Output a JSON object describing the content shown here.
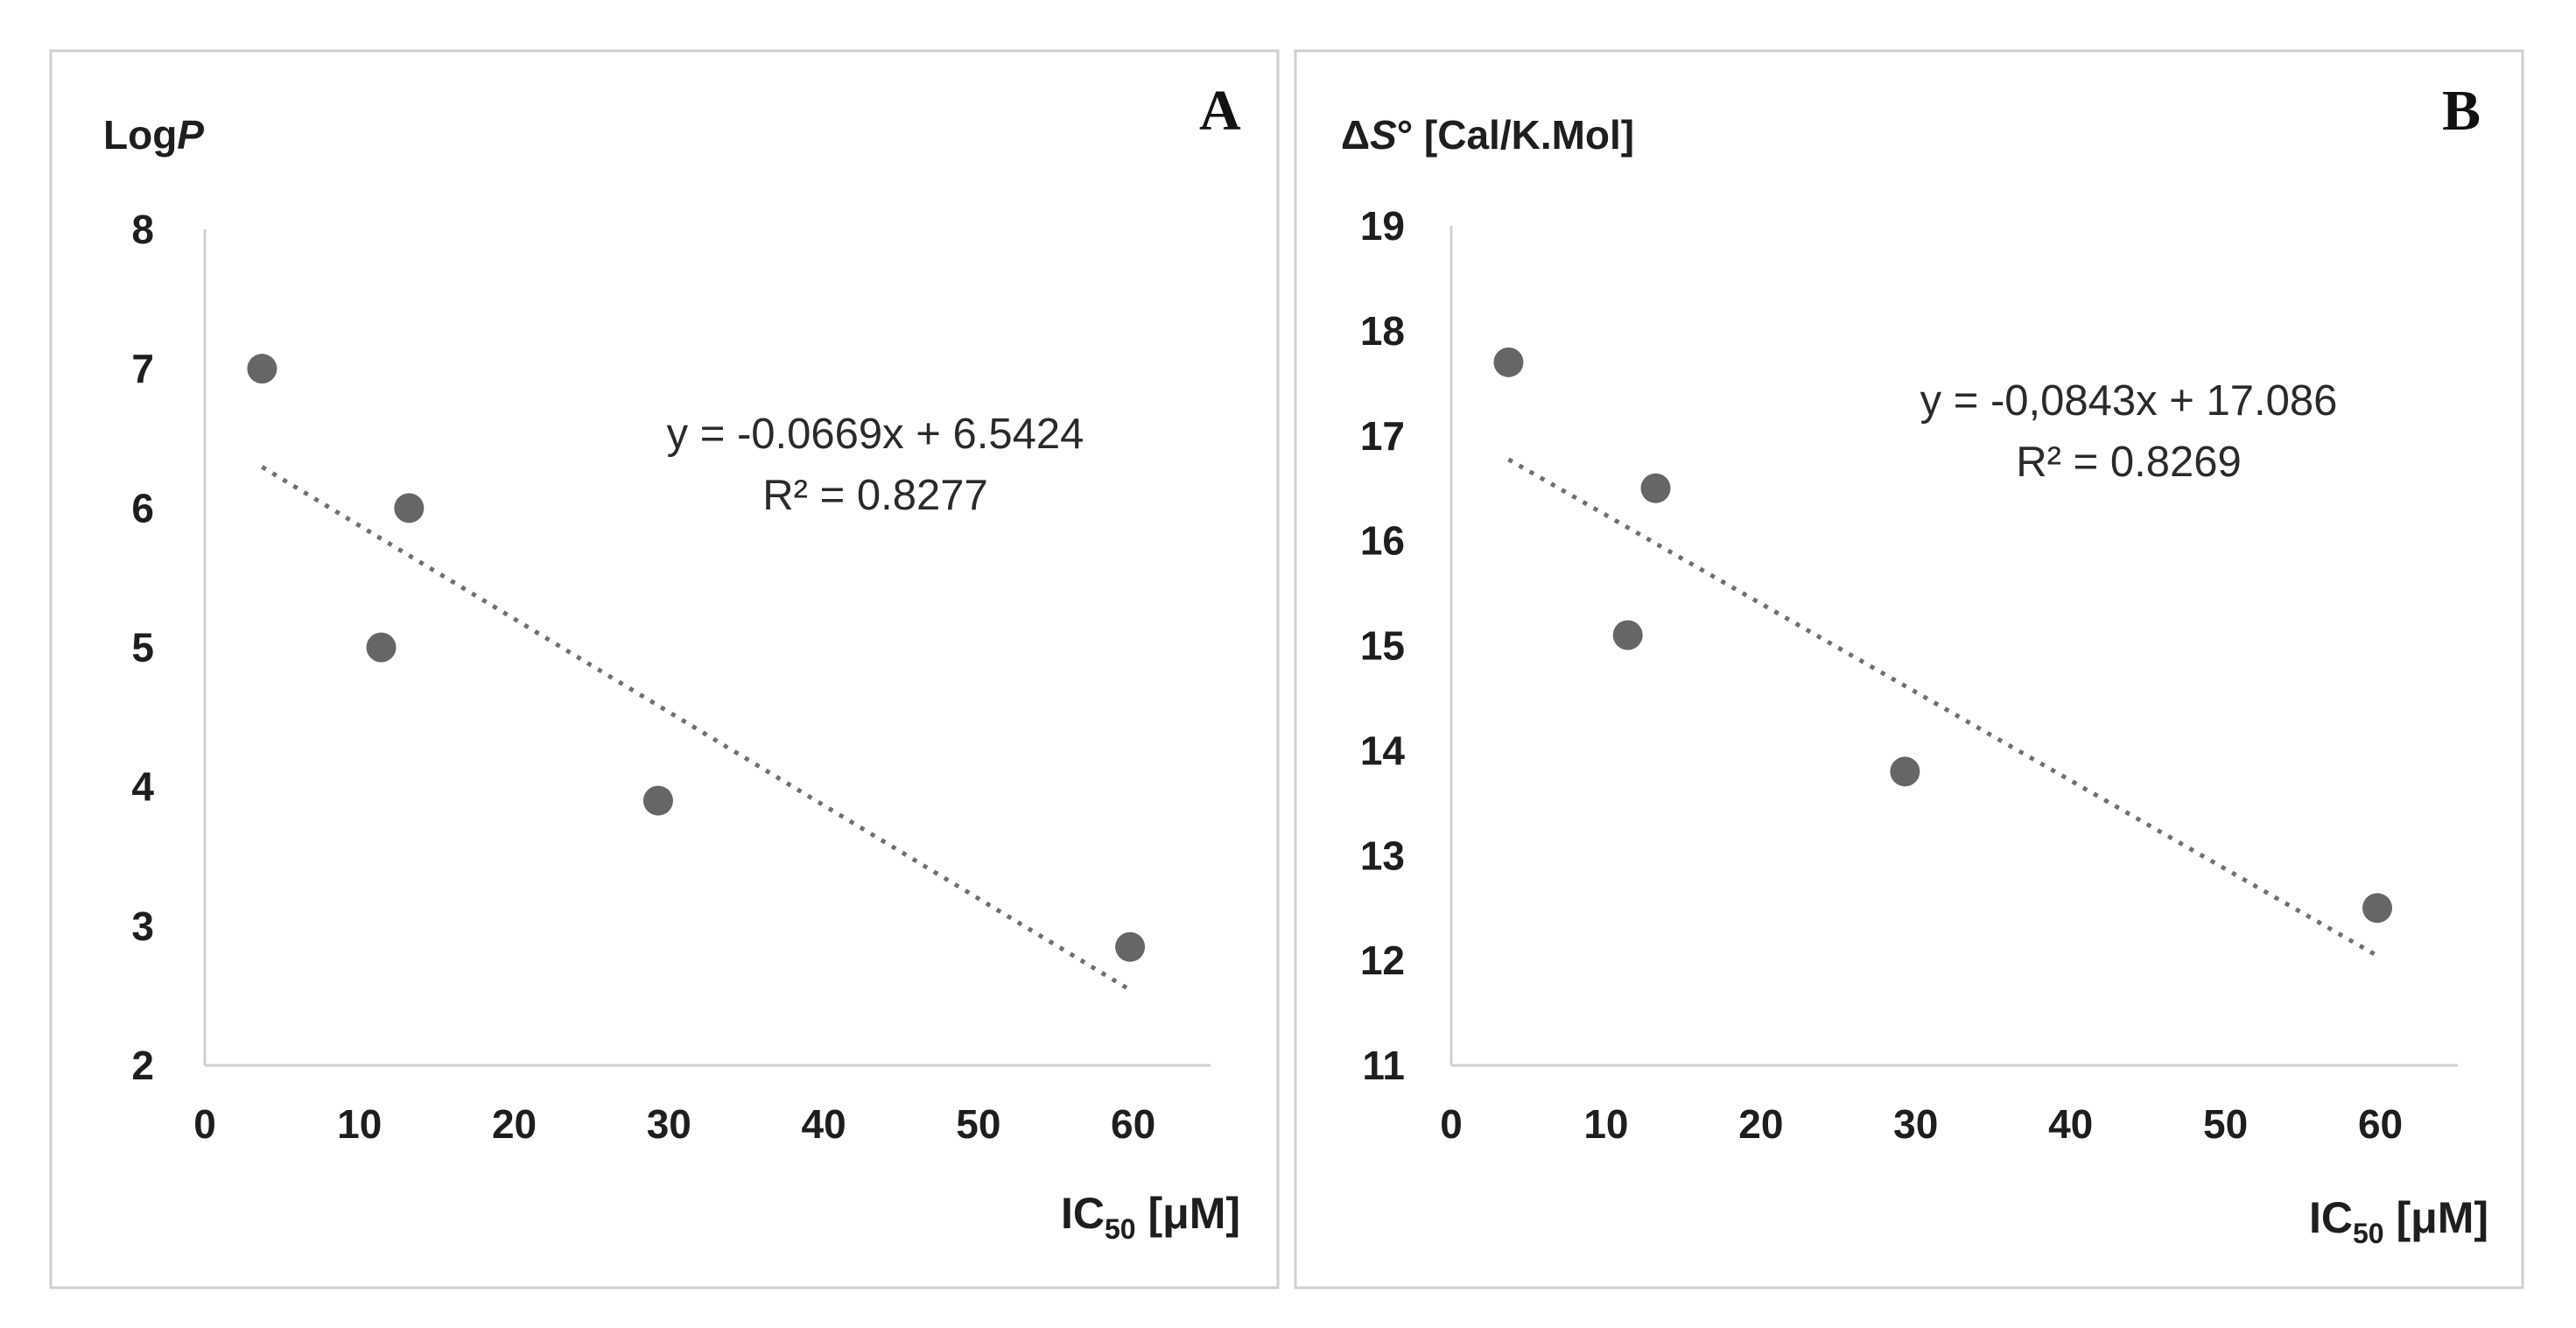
{
  "chart_data": [
    {
      "type": "scatter",
      "panel": "A",
      "ylabel": "Log",
      "ylabel_var": "P",
      "xlabel": "IC",
      "xlabel_sub": "50",
      "xlabel_unit": " [μM]",
      "xlim": [
        0,
        65
      ],
      "ylim": [
        2,
        8
      ],
      "xticks": [
        0,
        10,
        20,
        30,
        40,
        50,
        60
      ],
      "yticks": [
        2,
        3,
        4,
        5,
        6,
        7,
        8
      ],
      "points": [
        {
          "x": 3.7,
          "y": 7.0
        },
        {
          "x": 11.4,
          "y": 5.0
        },
        {
          "x": 13.2,
          "y": 6.0
        },
        {
          "x": 29.3,
          "y": 3.9
        },
        {
          "x": 59.8,
          "y": 2.85
        }
      ],
      "trendline": {
        "slope": -0.0669,
        "intercept": 6.5424,
        "x_range": [
          3.7,
          59.8
        ]
      },
      "equation": "y = -0.0669x + 6.5424",
      "r2_text": "R² = 0.8277",
      "color": "#666666"
    },
    {
      "type": "scatter",
      "panel": "B",
      "ylabel_pre": "Δ",
      "ylabel_var": "S",
      "ylabel": "° [Cal/K.Mol]",
      "xlabel": "IC",
      "xlabel_sub": "50",
      "xlabel_unit": " [μM]",
      "xlim": [
        0,
        65
      ],
      "ylim": [
        11,
        19
      ],
      "xticks": [
        0,
        10,
        20,
        30,
        40,
        50,
        60
      ],
      "yticks": [
        11,
        12,
        13,
        14,
        15,
        16,
        17,
        18,
        19
      ],
      "points": [
        {
          "x": 3.7,
          "y": 17.7
        },
        {
          "x": 11.4,
          "y": 15.1
        },
        {
          "x": 13.2,
          "y": 16.5
        },
        {
          "x": 29.3,
          "y": 13.8
        },
        {
          "x": 59.8,
          "y": 12.5
        }
      ],
      "trendline": {
        "slope": -0.0843,
        "intercept": 17.086,
        "x_range": [
          3.7,
          59.8
        ]
      },
      "equation": "y = -0,0843x + 17.086",
      "r2_text": "R² = 0.8269",
      "color": "#666666"
    }
  ]
}
